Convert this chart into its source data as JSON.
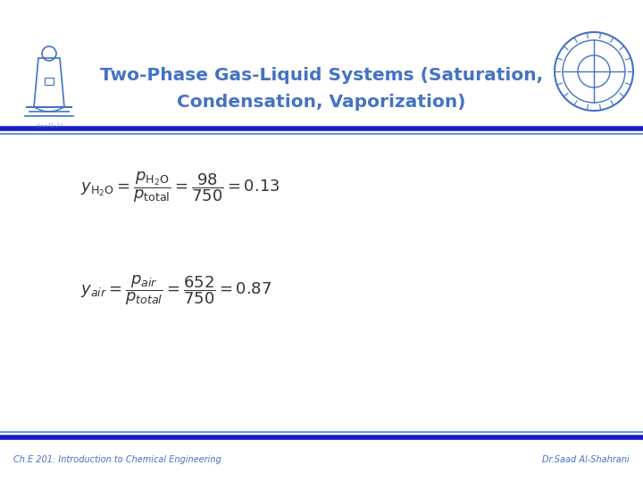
{
  "title_line1": "Two-Phase Gas-Liquid Systems (Saturation,",
  "title_line2": "Condensation, Vaporization)",
  "title_color": "#4472C4",
  "bg_color": "#FFFFFF",
  "header_bg_color": "#FFFFFF",
  "header_bar_color": "#0000CC",
  "accent_bar_color": "#4472C4",
  "footer_left": "Ch.E 201: Introduction to Chemical Engineering",
  "footer_right": "Dr.Saad Al-Shahrani",
  "footer_color": "#4472C4",
  "math_color": "#333333",
  "eq1_fontsize": 13,
  "eq2_fontsize": 13,
  "title_fontsize": 14.5
}
